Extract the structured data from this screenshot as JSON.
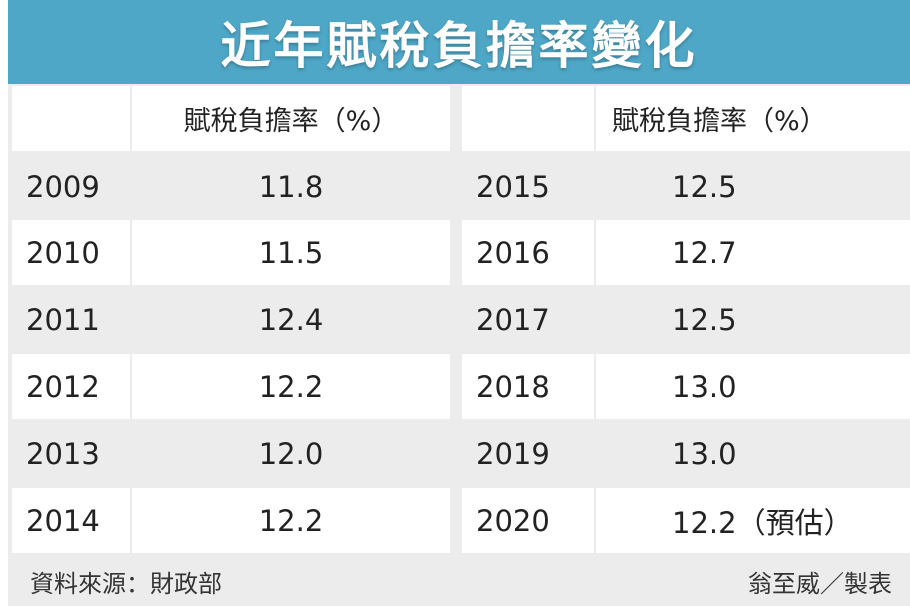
{
  "chart_data": {
    "type": "table",
    "title": "近年賦稅負擔率變化",
    "columns": [
      "",
      "賦稅負擔率（%）"
    ],
    "left_table": {
      "header": "賦稅負擔率（%）",
      "rows": [
        {
          "year": "2009",
          "value": "11.8"
        },
        {
          "year": "2010",
          "value": "11.5"
        },
        {
          "year": "2011",
          "value": "12.4"
        },
        {
          "year": "2012",
          "value": "12.2"
        },
        {
          "year": "2013",
          "value": "12.0"
        },
        {
          "year": "2014",
          "value": "12.2"
        }
      ]
    },
    "right_table": {
      "header": "賦稅負擔率（%）",
      "rows": [
        {
          "year": "2015",
          "value": "12.5"
        },
        {
          "year": "2016",
          "value": "12.7"
        },
        {
          "year": "2017",
          "value": "12.5"
        },
        {
          "year": "2018",
          "value": "13.0"
        },
        {
          "year": "2019",
          "value": "13.0"
        },
        {
          "year": "2020",
          "value": "12.2（預估）"
        }
      ]
    },
    "source": "資料來源：財政部",
    "credit": "翁至威／製表"
  },
  "colors": {
    "title_bar": "#4ea7c7",
    "row_white": "#ffffff",
    "row_grey": "#ececed"
  }
}
